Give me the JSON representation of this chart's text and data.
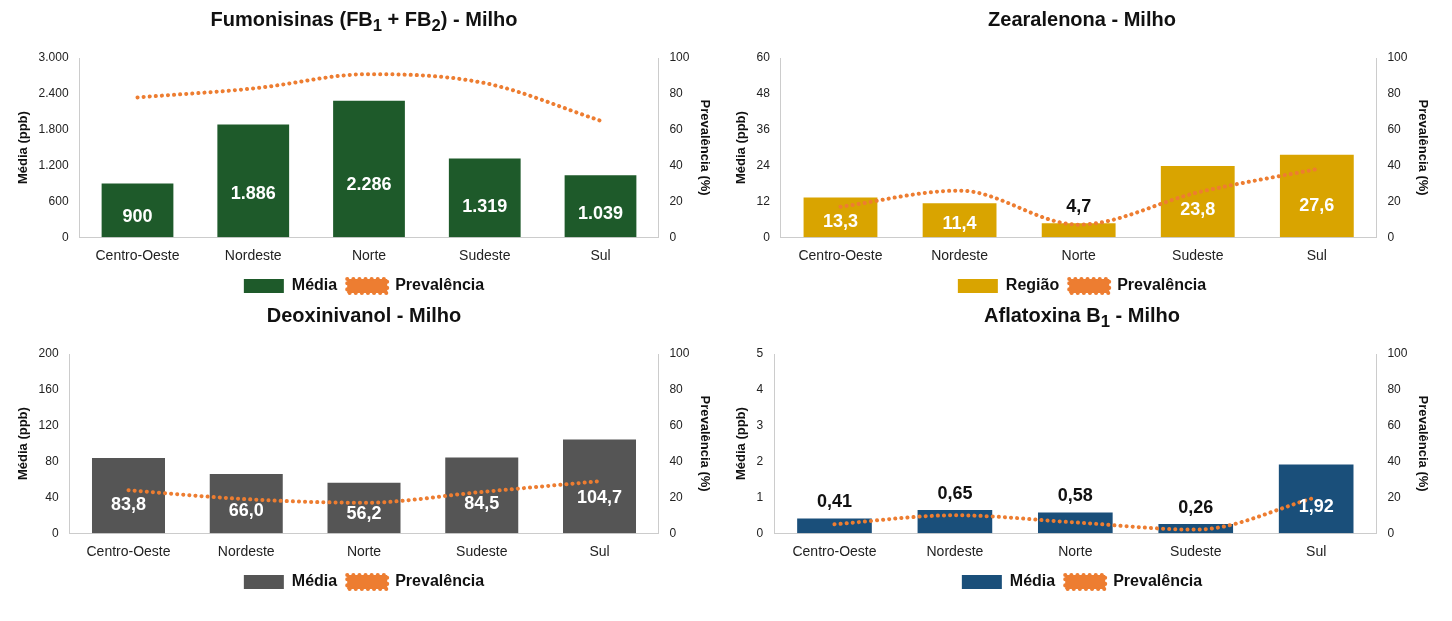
{
  "chart_data": [
    {
      "type": "bar",
      "title": "Fumonisinas (FB$_{1}$ + FB$_{2}$) - Milho",
      "ylabel": "Média (ppb)",
      "y2label": "Prevalência (%)",
      "categories": [
        "Centro-Oeste",
        "Nordeste",
        "Norte",
        "Sudeste",
        "Sul"
      ],
      "series": [
        {
          "name": "Média",
          "color": "#1e5a2a",
          "values": [
            900,
            1886,
            2286,
            1319,
            1039
          ],
          "value_labels": [
            "900",
            "1.886",
            "2.286",
            "1.319",
            "1.039"
          ]
        },
        {
          "name": "Prevalência",
          "type": "line",
          "axis": "y2",
          "color": "#ed7d31",
          "values": [
            78,
            83,
            91,
            86,
            65
          ]
        }
      ],
      "ylim": [
        0,
        3000
      ],
      "yticks": [
        0,
        {
          "value": 600,
          "label": "600"
        },
        {
          "value": 1200,
          "label": "1.200"
        },
        {
          "value": 1800,
          "label": "1.800"
        },
        {
          "value": 2400,
          "label": "2.400"
        },
        {
          "value": 3000,
          "label": "3.000"
        }
      ],
      "y2lim": [
        0,
        100
      ],
      "y2ticks": [
        0,
        20,
        40,
        60,
        80,
        100
      ],
      "grid": false,
      "legend": "bottom",
      "marker": "none",
      "line_style": "dotted"
    },
    {
      "type": "bar",
      "title": "Zearalenona - Milho",
      "ylabel": "Média (ppb)",
      "y2label": "Prevalência (%)",
      "categories": [
        "Centro-Oeste",
        "Nordeste",
        "Norte",
        "Sudeste",
        "Sul"
      ],
      "series": [
        {
          "name": "Região",
          "color": "#d9a400",
          "values": [
            13.3,
            11.4,
            4.7,
            23.8,
            27.6
          ],
          "value_labels": [
            "13,3",
            "11,4",
            "4,7",
            "23,8",
            "27,6"
          ]
        },
        {
          "name": "Prevalência",
          "type": "line",
          "axis": "y2",
          "color": "#ed7d31",
          "values": [
            17,
            26,
            7,
            25,
            38
          ]
        }
      ],
      "ylim": [
        0,
        60
      ],
      "yticks": [
        0,
        12,
        24,
        36,
        48,
        60
      ],
      "y2lim": [
        0,
        100
      ],
      "y2ticks": [
        0,
        20,
        40,
        60,
        80,
        100
      ],
      "grid": false,
      "legend": "bottom",
      "marker": "none",
      "line_style": "dotted"
    },
    {
      "type": "bar",
      "title": "Deoxinivanol - Milho",
      "ylabel": "Média (ppb)",
      "y2label": "Prevalência (%)",
      "categories": [
        "Centro-Oeste",
        "Nordeste",
        "Norte",
        "Sudeste",
        "Sul"
      ],
      "series": [
        {
          "name": "Média",
          "color": "#555555",
          "values": [
            83.8,
            66.0,
            56.2,
            84.5,
            104.7
          ],
          "value_labels": [
            "83,8",
            "66,0",
            "56,2",
            "84,5",
            "104,7"
          ]
        },
        {
          "name": "Prevalência",
          "type": "line",
          "axis": "y2",
          "color": "#ed7d31",
          "values": [
            24,
            19,
            17,
            23,
            29
          ]
        }
      ],
      "ylim": [
        0,
        200
      ],
      "yticks": [
        0,
        40,
        80,
        120,
        160,
        200
      ],
      "y2lim": [
        0,
        100
      ],
      "y2ticks": [
        0,
        20,
        40,
        60,
        80,
        100
      ],
      "grid": false,
      "legend": "bottom",
      "marker": "none",
      "line_style": "dotted"
    },
    {
      "type": "bar",
      "title": "Aflatoxina B$_{1}$ - Milho",
      "ylabel": "Média (ppb)",
      "y2label": "Prevalência (%)",
      "categories": [
        "Centro-Oeste",
        "Nordeste",
        "Norte",
        "Sudeste",
        "Sul"
      ],
      "series": [
        {
          "name": "Média",
          "color": "#1a4f7a",
          "values": [
            0.41,
            0.65,
            0.58,
            0.26,
            1.92
          ],
          "value_labels": [
            "0,41",
            "0,65",
            "0,58",
            "0,26",
            "1,92"
          ]
        },
        {
          "name": "Prevalência",
          "type": "line",
          "axis": "y2",
          "color": "#ed7d31",
          "values": [
            5,
            10,
            6,
            2,
            20
          ]
        }
      ],
      "ylim": [
        0,
        5
      ],
      "yticks": [
        0,
        1,
        2,
        3,
        4,
        5
      ],
      "y2lim": [
        0,
        100
      ],
      "y2ticks": [
        0,
        20,
        40,
        60,
        80,
        100
      ],
      "grid": false,
      "legend": "bottom",
      "marker": "none",
      "line_style": "dotted"
    }
  ]
}
